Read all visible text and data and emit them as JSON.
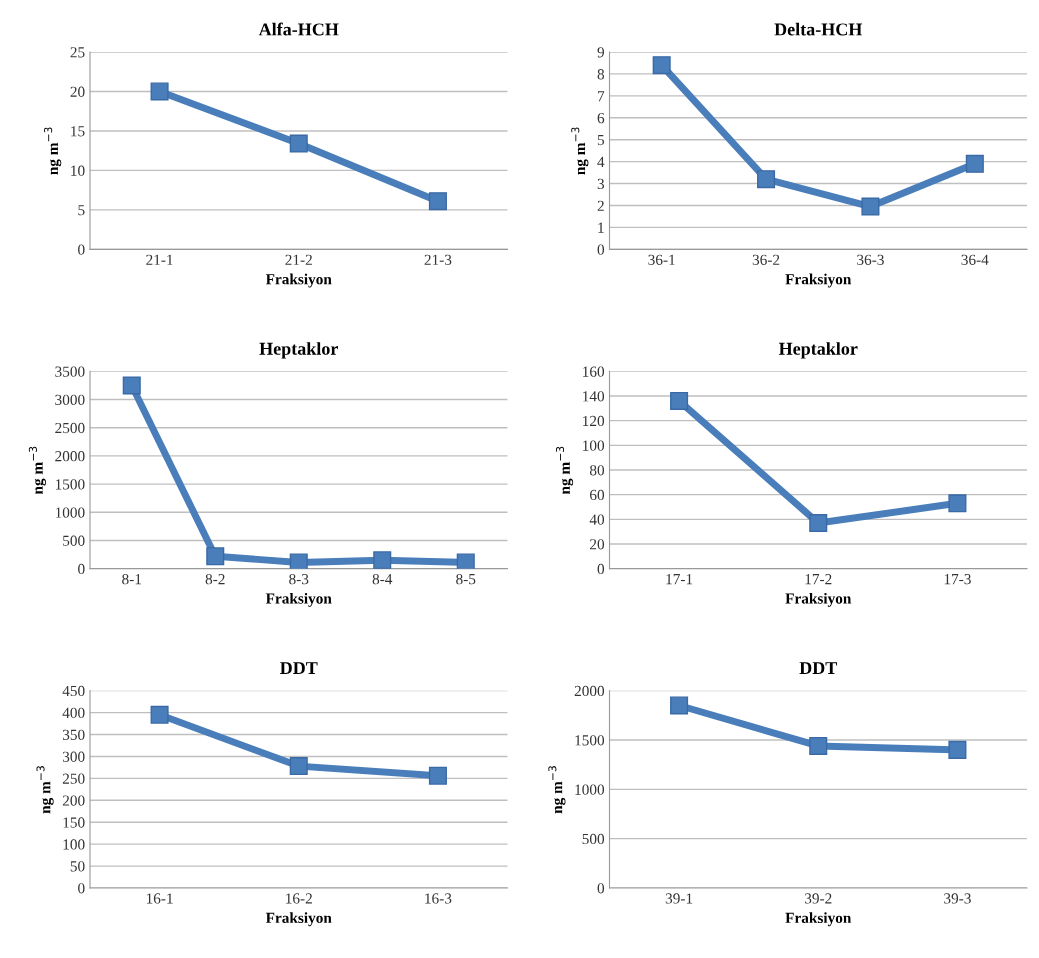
{
  "chart_data": [
    {
      "type": "line",
      "title": "Alfa-HCH",
      "xlabel": "Fraksiyon",
      "ylabel": "ng m$^{−3}$",
      "categories": [
        "21-1",
        "21-2",
        "21-3"
      ],
      "values": [
        20,
        13.4,
        6.1
      ],
      "color": "#4a7ebb",
      "ylim": [
        0,
        25
      ],
      "yticks": [
        0,
        5,
        10,
        15,
        20,
        25
      ],
      "grid": "y",
      "marker": "square",
      "line_style": "solid"
    },
    {
      "type": "line",
      "title": "Delta-HCH",
      "xlabel": "Fraksiyon",
      "ylabel": "ng m$^{−3}$",
      "categories": [
        "36-1",
        "36-2",
        "36-3",
        "36-4"
      ],
      "values": [
        8.4,
        3.2,
        1.95,
        3.9
      ],
      "color": "#4a7ebb",
      "ylim": [
        0,
        9
      ],
      "yticks": [
        0,
        1,
        2,
        3,
        4,
        5,
        6,
        7,
        8,
        9
      ],
      "grid": "y",
      "marker": "square",
      "line_style": "solid"
    },
    {
      "type": "line",
      "title": "Heptaklor",
      "xlabel": "Fraksiyon",
      "ylabel": "ng m$^{−3}$",
      "categories": [
        "8-1",
        "8-2",
        "8-3",
        "8-4",
        "8-5"
      ],
      "values": [
        3250,
        220,
        110,
        150,
        110
      ],
      "color": "#4a7ebb",
      "ylim": [
        0,
        3500
      ],
      "yticks": [
        0,
        500,
        1000,
        1500,
        2000,
        2500,
        3000,
        3500
      ],
      "grid": "y",
      "marker": "square",
      "line_style": "solid"
    },
    {
      "type": "line",
      "title": "Heptaklor",
      "xlabel": "Fraksiyon",
      "ylabel": "ng m$^{−3}$",
      "categories": [
        "17-1",
        "17-2",
        "17-3"
      ],
      "values": [
        136,
        37,
        53
      ],
      "color": "#4a7ebb",
      "ylim": [
        0,
        160
      ],
      "yticks": [
        0,
        20,
        40,
        60,
        80,
        100,
        120,
        140,
        160
      ],
      "grid": "y",
      "marker": "square",
      "line_style": "solid"
    },
    {
      "type": "line",
      "title": "DDT",
      "xlabel": "Fraksiyon",
      "ylabel": "ng m$^{−3}$",
      "categories": [
        "16-1",
        "16-2",
        "16-3"
      ],
      "values": [
        395,
        278,
        256
      ],
      "color": "#4a7ebb",
      "ylim": [
        0,
        450
      ],
      "yticks": [
        0,
        50,
        100,
        150,
        200,
        250,
        300,
        350,
        400,
        450
      ],
      "grid": "y",
      "marker": "square",
      "line_style": "solid"
    },
    {
      "type": "line",
      "title": "DDT",
      "xlabel": "Fraksiyon",
      "ylabel": "ng m$^{−3}$",
      "categories": [
        "39-1",
        "39-2",
        "39-3"
      ],
      "values": [
        1850,
        1440,
        1400
      ],
      "color": "#4a7ebb",
      "ylim": [
        0,
        2000
      ],
      "yticks": [
        0,
        500,
        1000,
        1500,
        2000
      ],
      "grid": "y",
      "marker": "square",
      "line_style": "solid"
    }
  ]
}
